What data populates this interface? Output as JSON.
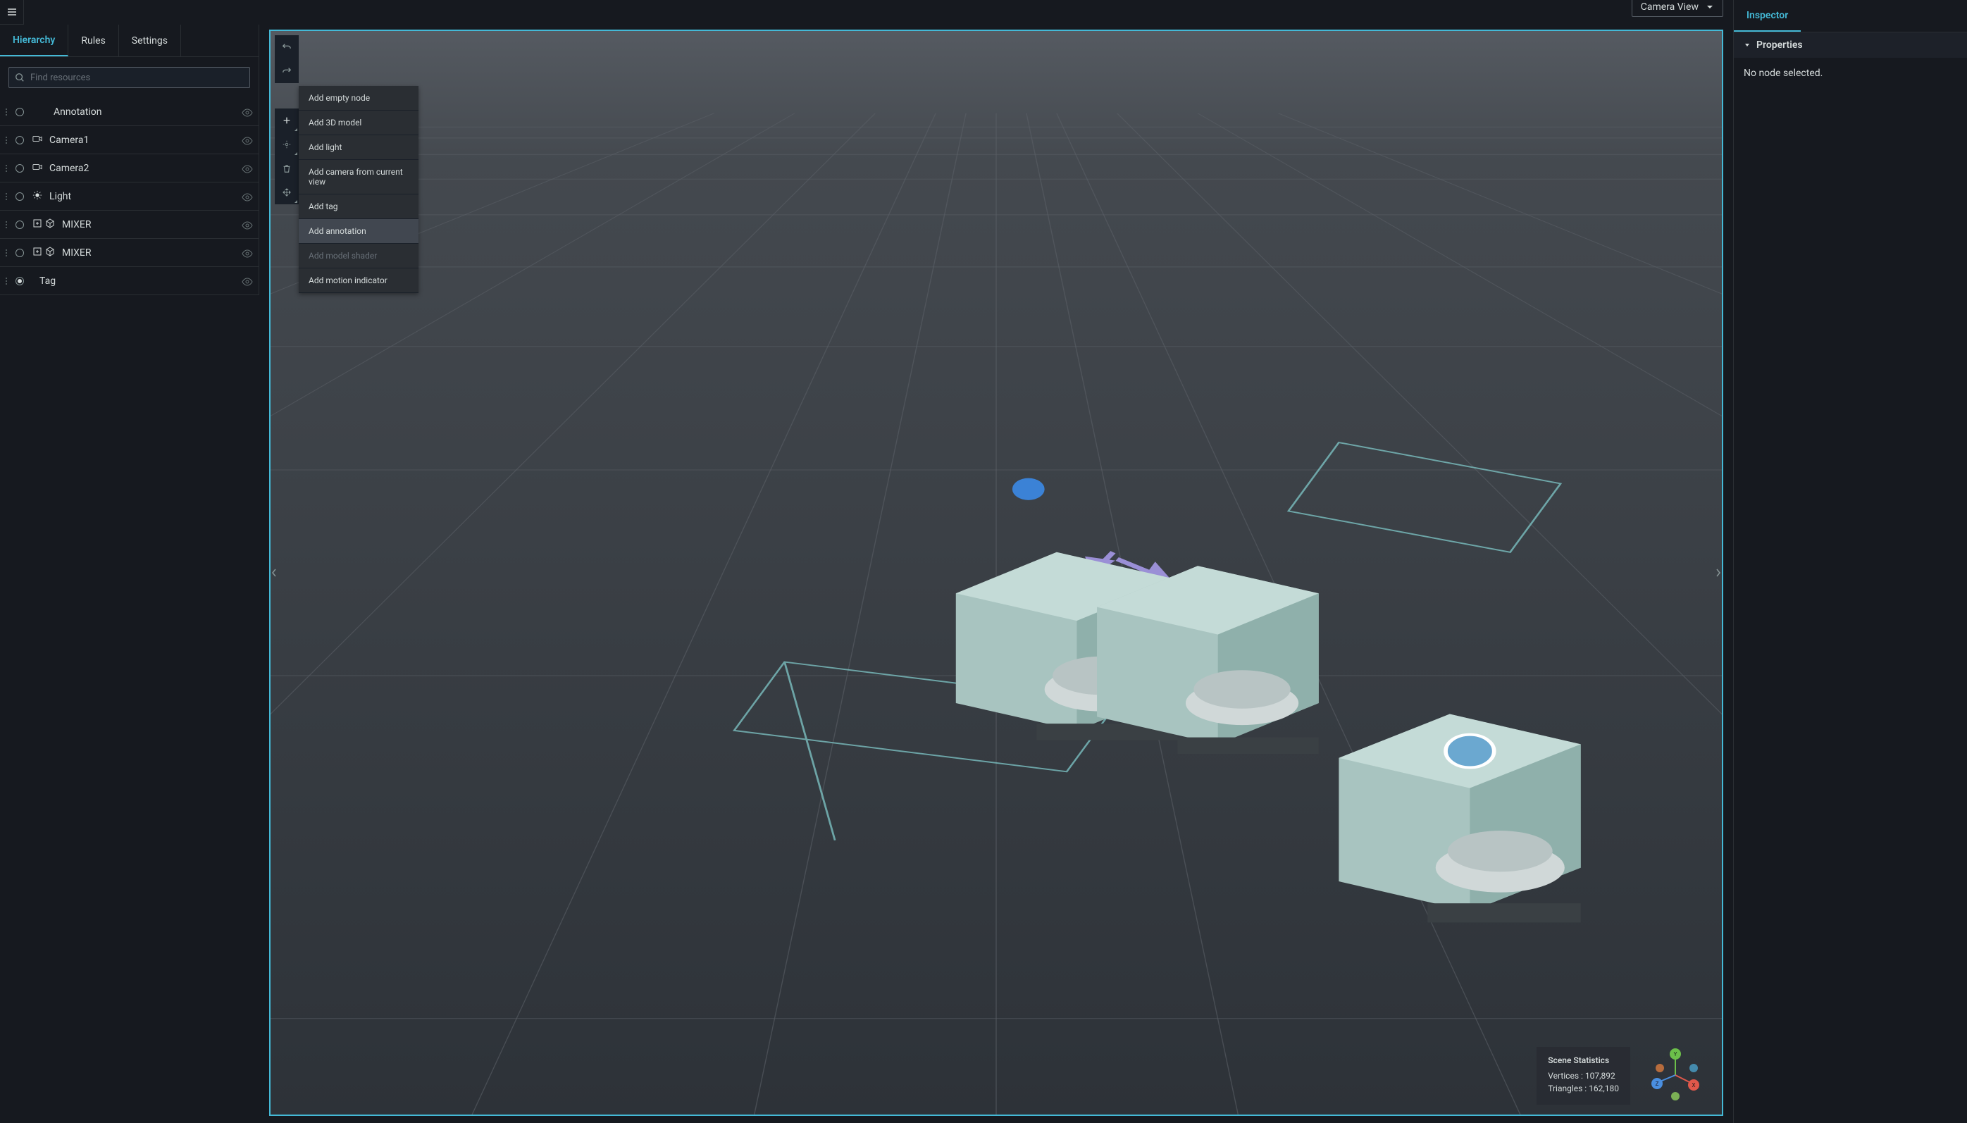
{
  "leftPanel": {
    "tabs": [
      {
        "id": "hierarchy",
        "label": "Hierarchy",
        "active": true
      },
      {
        "id": "rules",
        "label": "Rules",
        "active": false
      },
      {
        "id": "settings",
        "label": "Settings",
        "active": false
      }
    ],
    "search_placeholder": "Find resources",
    "nodes": [
      {
        "id": "annotation",
        "label": "Annotation",
        "icons": [],
        "indent": true,
        "radio": "empty"
      },
      {
        "id": "camera1",
        "label": "Camera1",
        "icons": [
          "camera"
        ],
        "radio": "empty"
      },
      {
        "id": "camera2",
        "label": "Camera2",
        "icons": [
          "camera"
        ],
        "radio": "empty"
      },
      {
        "id": "light",
        "label": "Light",
        "icons": [
          "light"
        ],
        "radio": "empty"
      },
      {
        "id": "mixer1",
        "label": "MIXER",
        "icons": [
          "expand",
          "cube"
        ],
        "radio": "empty"
      },
      {
        "id": "mixer2",
        "label": "MIXER",
        "icons": [
          "expand",
          "cube"
        ],
        "radio": "empty"
      },
      {
        "id": "tag",
        "label": "Tag",
        "icons": [],
        "radio": "filled"
      }
    ]
  },
  "viewport": {
    "camera_view_label": "Camera View",
    "border_color": "#44b9d6",
    "add_menu": [
      {
        "label": "Add empty node",
        "state": "normal"
      },
      {
        "label": "Add 3D model",
        "state": "normal"
      },
      {
        "label": "Add light",
        "state": "normal"
      },
      {
        "label": "Add camera from current view",
        "state": "normal"
      },
      {
        "label": "Add tag",
        "state": "normal"
      },
      {
        "label": "Add annotation",
        "state": "highlighted"
      },
      {
        "label": "Add model shader",
        "state": "disabled"
      },
      {
        "label": "Add motion indicator",
        "state": "normal"
      }
    ],
    "stats": {
      "title": "Scene Statistics",
      "vertices_label": "Vertices : 107,892",
      "triangles_label": "Triangles : 162,180"
    },
    "axis": {
      "x_color": "#e0584b",
      "x_label": "X",
      "y_color": "#6cbf4a",
      "y_label": "Y",
      "z_color": "#4a8fe0",
      "z_label": "Z",
      "neg_colors": [
        "#d97b3e",
        "#8fce5d",
        "#4aa0c9"
      ]
    },
    "scene": {
      "grid_color_top": "#6a6f76",
      "grid_color_bottom": "#3a3f45",
      "mixer_body_color": "#a8c4c0",
      "mixer_shadow_color": "#7a9490",
      "tag_marker_color": "#3b82d6",
      "camera_wire_color": "#7bbfc0",
      "arrow_color": "#9a8fd6"
    }
  },
  "rightPanel": {
    "tabs": [
      {
        "id": "inspector",
        "label": "Inspector",
        "active": true
      }
    ],
    "section_title": "Properties",
    "empty_message": "No node selected."
  },
  "colors": {
    "background": "#16191f",
    "panel_border": "#2a2e33",
    "accent": "#44b9d6",
    "text": "#d5dbdb",
    "text_muted": "#879596"
  }
}
